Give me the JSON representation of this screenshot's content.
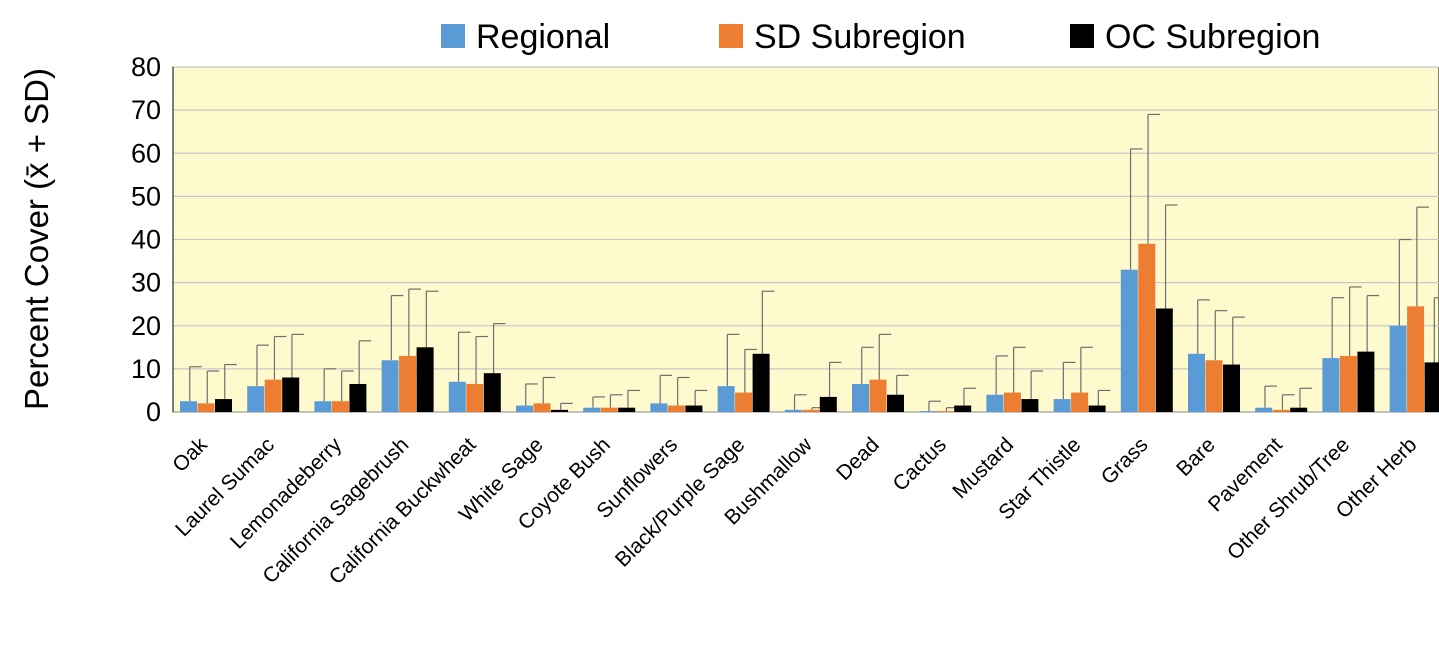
{
  "chart_data": {
    "type": "bar",
    "ylabel": "Percent Cover (x̄ + SD)",
    "ylim": [
      0,
      80
    ],
    "yticks": [
      "0",
      "10",
      "20",
      "30",
      "40",
      "50",
      "60",
      "70",
      "80"
    ],
    "grid": true,
    "legend_position": "top",
    "categories": [
      "Oak",
      "Laurel Sumac",
      "Lemonadeberry",
      "California Sagebrush",
      "California Buckwheat",
      "White Sage",
      "Coyote Bush",
      "Sunflowers",
      "Black/Purple Sage",
      "Bushmallow",
      "Dead",
      "Cactus",
      "Mustard",
      "Star Thistle",
      "Grass",
      "Bare",
      "Pavement",
      "Other Shrub/Tree",
      "Other Herb"
    ],
    "series": [
      {
        "name": "Regional",
        "color": "#5B9BD5",
        "values": [
          2.5,
          6,
          2.5,
          12,
          7,
          1.5,
          1,
          2,
          6,
          0.5,
          6.5,
          0.2,
          4,
          3,
          33,
          13.5,
          1,
          12.5,
          20
        ],
        "sd_upper": [
          10.5,
          15.5,
          10,
          27,
          18.5,
          6.5,
          3.5,
          8.5,
          18,
          4,
          15,
          2.5,
          13,
          11.5,
          61,
          26,
          6,
          26.5,
          40
        ]
      },
      {
        "name": "SD Subregion",
        "color": "#ED7D31",
        "values": [
          2,
          7.5,
          2.5,
          13,
          6.5,
          2,
          1,
          1.5,
          4.5,
          0.5,
          7.5,
          0.2,
          4.5,
          4.5,
          39,
          12,
          0.5,
          13,
          24.5
        ],
        "sd_upper": [
          9.5,
          17.5,
          9.5,
          28.5,
          17.5,
          8,
          4,
          8,
          14.5,
          1,
          18,
          1,
          15,
          15,
          69,
          23.5,
          4,
          29,
          47.5
        ]
      },
      {
        "name": "OC Subregion",
        "color": "#000000",
        "values": [
          3,
          8,
          6.5,
          15,
          9,
          0.5,
          1,
          1.5,
          13.5,
          3.5,
          4,
          1.5,
          3,
          1.5,
          24,
          11,
          1,
          14,
          11.5
        ],
        "sd_upper": [
          11,
          18,
          16.5,
          28,
          20.5,
          2,
          5,
          5,
          28,
          11.5,
          8.5,
          5.5,
          9.5,
          5,
          48,
          22,
          5.5,
          27,
          26.5
        ]
      }
    ]
  }
}
